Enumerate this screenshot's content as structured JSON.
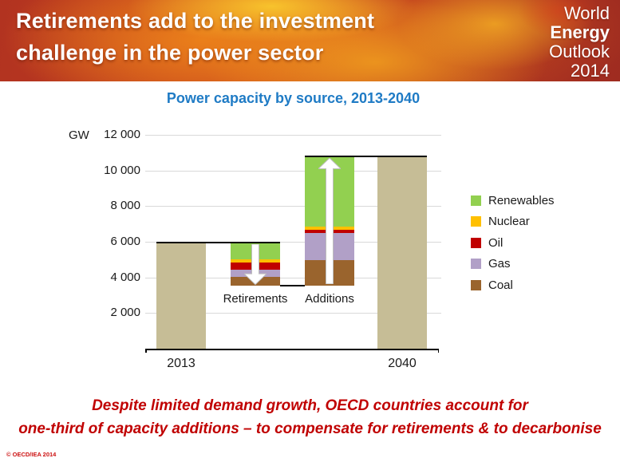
{
  "header": {
    "title_line1": "Retirements add to the investment",
    "title_line2": "challenge in the power sector",
    "logo": {
      "line1": "World",
      "line2": "Energy",
      "line3": "Outlook",
      "line4": "2014"
    }
  },
  "chart": {
    "title": "Power capacity by source, 2013-2040",
    "unit_label": "GW"
  },
  "chart_data": {
    "type": "bar",
    "subtype": "stacked-waterfall",
    "title": "Power capacity by source, 2013-2040",
    "ylabel": "GW",
    "ylim": [
      0,
      12000
    ],
    "grid": true,
    "legend_position": "right",
    "yticks": [
      {
        "label": "12 000",
        "value": 12000
      },
      {
        "label": "10 000",
        "value": 10000
      },
      {
        "label": "8 000",
        "value": 8000
      },
      {
        "label": "6 000",
        "value": 6000
      },
      {
        "label": "4 000",
        "value": 4000
      },
      {
        "label": "2 000",
        "value": 2000
      }
    ],
    "categories": [
      "2013",
      "Retirements",
      "Additions",
      "2040"
    ],
    "bars": [
      {
        "label": "2013",
        "type": "total",
        "value": 5950,
        "label_position": "axis"
      },
      {
        "label": "Retirements",
        "type": "stacked",
        "base": 3550,
        "arrow": "down",
        "label_position": "below-bar",
        "segments": [
          {
            "source": "Coal",
            "value": 500
          },
          {
            "source": "Gas",
            "value": 400
          },
          {
            "source": "Oil",
            "value": 400
          },
          {
            "source": "Nuclear",
            "value": 150
          },
          {
            "source": "Renewables",
            "value": 950
          }
        ]
      },
      {
        "label": "Additions",
        "type": "stacked",
        "base": 3550,
        "arrow": "up",
        "label_position": "below-bar",
        "segments": [
          {
            "source": "Coal",
            "value": 1400
          },
          {
            "source": "Gas",
            "value": 1550
          },
          {
            "source": "Oil",
            "value": 150
          },
          {
            "source": "Nuclear",
            "value": 200
          },
          {
            "source": "Renewables",
            "value": 3950
          }
        ]
      },
      {
        "label": "2040",
        "type": "total",
        "value": 10800,
        "label_position": "axis"
      }
    ],
    "connectors": [
      {
        "value": 5950,
        "from_bar": 0,
        "from_edge": "left",
        "to_bar": 1,
        "to_edge": "right"
      },
      {
        "value": 3550,
        "from_bar": 1,
        "from_edge": "right",
        "to_bar": 2,
        "to_edge": "left"
      },
      {
        "value": 10800,
        "from_bar": 2,
        "from_edge": "left",
        "to_bar": 3,
        "to_edge": "right"
      }
    ],
    "legend": [
      {
        "label": "Renewables",
        "color": "#92D050"
      },
      {
        "label": "Nuclear",
        "color": "#FFC000"
      },
      {
        "label": "Oil",
        "color": "#C00000"
      },
      {
        "label": "Gas",
        "color": "#B1A0C7"
      },
      {
        "label": "Coal",
        "color": "#9A642D"
      }
    ],
    "total_color": "#C6BD96"
  },
  "footer": {
    "message_line1": "Despite limited demand growth, OECD countries account for",
    "message_line2": "one-third of capacity additions – to compensate for retirements & to decarbonise",
    "copyright": "© OECD/IEA 2014"
  }
}
